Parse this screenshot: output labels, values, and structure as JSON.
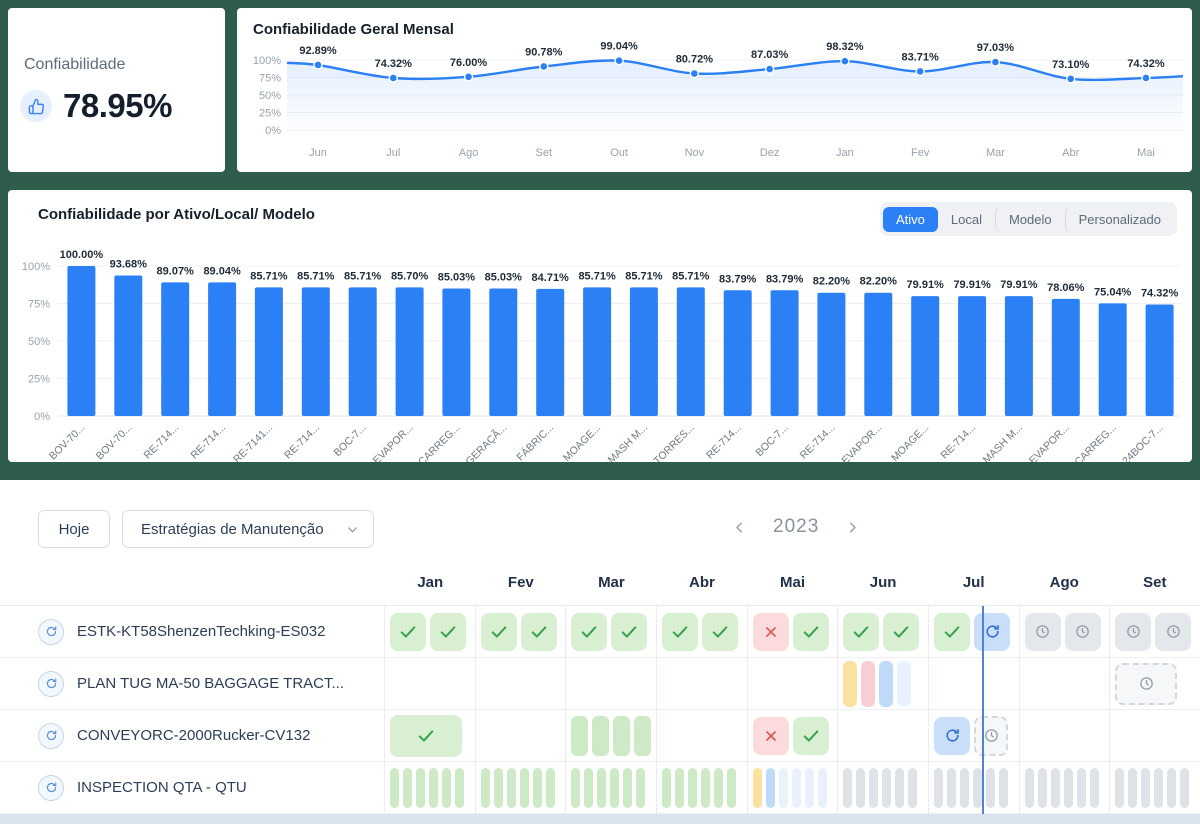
{
  "kpi_card": {
    "label": "Confiabilidade",
    "value": "78.95%"
  },
  "chart_data": [
    {
      "type": "line",
      "title": "Confiabilidade Geral Mensal",
      "x": [
        "Jun",
        "Jul",
        "Ago",
        "Set",
        "Out",
        "Nov",
        "Dez",
        "Jan",
        "Fev",
        "Mar",
        "Abr",
        "Mai"
      ],
      "values": [
        92.89,
        74.32,
        76.0,
        90.78,
        99.04,
        80.72,
        87.03,
        98.32,
        83.71,
        97.03,
        73.1,
        74.32
      ],
      "point_labels": [
        "92.89%",
        "74.32%",
        "76.00%",
        "90.78%",
        "99.04%",
        "80.72%",
        "87.03%",
        "98.32%",
        "83.71%",
        "97.03%",
        "73.10%",
        "74.32%"
      ],
      "yticks": [
        "100%",
        "75%",
        "50%",
        "25%",
        "0%"
      ],
      "ylim": [
        0,
        100
      ],
      "grid": true,
      "legend": "none"
    },
    {
      "type": "bar",
      "title": "Confiabilidade por Ativo/Local/ Modelo",
      "categories": [
        "BOV-70...",
        "BOV-70...",
        "RE-714...",
        "RE-714...",
        "RE-7141...",
        "RE-714...",
        "BOC-7...",
        "EVAPOR...",
        "CARREG...",
        "GERAÇÃ...",
        "FÁBRIC...",
        "MOAGE...",
        "MASH M...",
        "TORRES...",
        "RE-714...",
        "BOC-7...",
        "RE-714...",
        "EVAPOR...",
        "MOAGE...",
        "RE-714...",
        "MASH M...",
        "EVAPOR...",
        "CARREG...",
        "24BOC-7..."
      ],
      "values": [
        100.0,
        93.68,
        89.07,
        89.04,
        85.71,
        85.71,
        85.71,
        85.7,
        85.03,
        85.03,
        84.71,
        85.71,
        85.71,
        85.71,
        83.79,
        83.79,
        82.2,
        82.2,
        79.91,
        79.91,
        79.91,
        78.06,
        75.04,
        74.32
      ],
      "value_labels": [
        "100.00%",
        "93.68%",
        "89.07%",
        "89.04%",
        "85.71%",
        "85.71%",
        "85.71%",
        "85.70%",
        "85.03%",
        "85.03%",
        "84.71%",
        "85.71%",
        "85.71%",
        "85.71%",
        "83.79%",
        "83.79%",
        "82.20%",
        "82.20%",
        "79.91%",
        "79.91%",
        "79.91%",
        "78.06%",
        "75.04%",
        "74.32%"
      ],
      "yticks": [
        "100%",
        "75%",
        "50%",
        "25%",
        "0%"
      ],
      "ylim": [
        0,
        100
      ],
      "grid": true
    }
  ],
  "bar_section": {
    "tabs": [
      {
        "label": "Ativo",
        "active": true
      },
      {
        "label": "Local",
        "active": false
      },
      {
        "label": "Modelo",
        "active": false
      },
      {
        "label": "Personalizado",
        "active": false
      }
    ]
  },
  "calendar": {
    "today_button": "Hoje",
    "filter_dropdown": "Estratégias de Manutenção",
    "year": "2023",
    "months": [
      "Jan",
      "Fev",
      "Mar",
      "Abr",
      "Mai",
      "Jun",
      "Jul",
      "Ago",
      "Set"
    ],
    "rows": [
      {
        "name": "ESTK-KT58ShenzenTechking-ES032",
        "cells": [
          [
            {
              "t": "check"
            },
            {
              "t": "check"
            }
          ],
          [
            {
              "t": "check"
            },
            {
              "t": "check"
            }
          ],
          [
            {
              "t": "check"
            },
            {
              "t": "check"
            }
          ],
          [
            {
              "t": "check"
            },
            {
              "t": "check"
            }
          ],
          [
            {
              "t": "cross"
            },
            {
              "t": "check"
            }
          ],
          [
            {
              "t": "check"
            },
            {
              "t": "check"
            }
          ],
          [
            {
              "t": "check"
            },
            {
              "t": "refresh"
            }
          ],
          [
            {
              "t": "clock"
            },
            {
              "t": "clock"
            }
          ],
          [
            {
              "t": "clock"
            },
            {
              "t": "clock"
            }
          ]
        ]
      },
      {
        "name": "PLAN TUG MA-50 BAGGAGE TRACT...",
        "cells": [
          [],
          [],
          [],
          [],
          [],
          [
            {
              "t": "pill",
              "c": "yellow",
              "s": "md"
            },
            {
              "t": "pill",
              "c": "pink",
              "s": "md"
            },
            {
              "t": "pill",
              "c": "blue",
              "s": "md"
            },
            {
              "t": "pill",
              "c": "paleblue",
              "s": "md"
            }
          ],
          [],
          [],
          [
            {
              "t": "clockDashed",
              "s": "wide"
            }
          ]
        ]
      },
      {
        "name": "CONVEYORC-2000Rucker-CV132",
        "cells": [
          [
            {
              "t": "wideCheck"
            }
          ],
          [],
          [
            {
              "t": "pill",
              "c": "green",
              "s": "lg"
            },
            {
              "t": "pill",
              "c": "green",
              "s": "lg"
            },
            {
              "t": "pill",
              "c": "green",
              "s": "lg"
            },
            {
              "t": "pill",
              "c": "green",
              "s": "lg"
            }
          ],
          [],
          [
            {
              "t": "cross"
            },
            {
              "t": "check"
            }
          ],
          [],
          [
            {
              "t": "refresh"
            },
            {
              "t": "clockDashed",
              "s": "sm"
            }
          ],
          [],
          []
        ]
      },
      {
        "name": "INSPECTION QTA - QTU",
        "cells": [
          [
            {
              "t": "pill",
              "c": "green",
              "s": "sm"
            },
            {
              "t": "pill",
              "c": "green",
              "s": "sm"
            },
            {
              "t": "pill",
              "c": "green",
              "s": "sm"
            },
            {
              "t": "pill",
              "c": "green",
              "s": "sm"
            },
            {
              "t": "pill",
              "c": "green",
              "s": "sm"
            },
            {
              "t": "pill",
              "c": "green",
              "s": "sm"
            }
          ],
          [
            {
              "t": "pill",
              "c": "green",
              "s": "sm"
            },
            {
              "t": "pill",
              "c": "green",
              "s": "sm"
            },
            {
              "t": "pill",
              "c": "green",
              "s": "sm"
            },
            {
              "t": "pill",
              "c": "green",
              "s": "sm"
            },
            {
              "t": "pill",
              "c": "green",
              "s": "sm"
            },
            {
              "t": "pill",
              "c": "green",
              "s": "sm"
            }
          ],
          [
            {
              "t": "pill",
              "c": "green",
              "s": "sm"
            },
            {
              "t": "pill",
              "c": "green",
              "s": "sm"
            },
            {
              "t": "pill",
              "c": "green",
              "s": "sm"
            },
            {
              "t": "pill",
              "c": "green",
              "s": "sm"
            },
            {
              "t": "pill",
              "c": "green",
              "s": "sm"
            },
            {
              "t": "pill",
              "c": "green",
              "s": "sm"
            }
          ],
          [
            {
              "t": "pill",
              "c": "green",
              "s": "sm"
            },
            {
              "t": "pill",
              "c": "green",
              "s": "sm"
            },
            {
              "t": "pill",
              "c": "green",
              "s": "sm"
            },
            {
              "t": "pill",
              "c": "green",
              "s": "sm"
            },
            {
              "t": "pill",
              "c": "green",
              "s": "sm"
            },
            {
              "t": "pill",
              "c": "green",
              "s": "sm"
            }
          ],
          [
            {
              "t": "pill",
              "c": "yellow",
              "s": "sm"
            },
            {
              "t": "pill",
              "c": "blue",
              "s": "sm"
            },
            {
              "t": "pill",
              "c": "paleblue",
              "s": "sm"
            },
            {
              "t": "pill",
              "c": "paleblue",
              "s": "sm"
            },
            {
              "t": "pill",
              "c": "paleblue",
              "s": "sm"
            },
            {
              "t": "pill",
              "c": "paleblue",
              "s": "sm"
            }
          ],
          [
            {
              "t": "pill",
              "c": "gray",
              "s": "sm"
            },
            {
              "t": "pill",
              "c": "gray",
              "s": "sm"
            },
            {
              "t": "pill",
              "c": "gray",
              "s": "sm"
            },
            {
              "t": "pill",
              "c": "gray",
              "s": "sm"
            },
            {
              "t": "pill",
              "c": "gray",
              "s": "sm"
            },
            {
              "t": "pill",
              "c": "gray",
              "s": "sm"
            }
          ],
          [
            {
              "t": "pill",
              "c": "gray",
              "s": "sm"
            },
            {
              "t": "pill",
              "c": "gray",
              "s": "sm"
            },
            {
              "t": "pill",
              "c": "gray",
              "s": "sm"
            },
            {
              "t": "pill",
              "c": "gray",
              "s": "sm"
            },
            {
              "t": "pill",
              "c": "gray",
              "s": "sm"
            },
            {
              "t": "pill",
              "c": "gray",
              "s": "sm"
            }
          ],
          [
            {
              "t": "pill",
              "c": "gray",
              "s": "sm"
            },
            {
              "t": "pill",
              "c": "gray",
              "s": "sm"
            },
            {
              "t": "pill",
              "c": "gray",
              "s": "sm"
            },
            {
              "t": "pill",
              "c": "gray",
              "s": "sm"
            },
            {
              "t": "pill",
              "c": "gray",
              "s": "sm"
            },
            {
              "t": "pill",
              "c": "gray",
              "s": "sm"
            }
          ],
          [
            {
              "t": "pill",
              "c": "gray",
              "s": "sm"
            },
            {
              "t": "pill",
              "c": "gray",
              "s": "sm"
            },
            {
              "t": "pill",
              "c": "gray",
              "s": "sm"
            },
            {
              "t": "pill",
              "c": "gray",
              "s": "sm"
            },
            {
              "t": "pill",
              "c": "gray",
              "s": "sm"
            },
            {
              "t": "pill",
              "c": "gray",
              "s": "sm"
            }
          ]
        ]
      }
    ]
  },
  "colors": {
    "frame": "#2e5d4b",
    "accent": "#2b80f5",
    "check-green": "#37a24b",
    "cross-red": "#dd5454",
    "today-line": "#4f82d8",
    "pill-green": "#cde9c6",
    "pill-yellow": "#fae1a0",
    "pill-pink": "#f8ced2",
    "pill-blue": "#bfd9f8",
    "pill-paleblue": "#e9f2fc",
    "pill-gray": "#dfe3e7"
  }
}
